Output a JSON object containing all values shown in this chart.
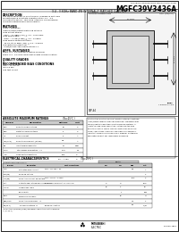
{
  "title": "MGFC39V3436A",
  "company_line": "MITSUBISHI SEMICONDUCTOR TECHNICAL DATA SHEET",
  "subtitle2": "3.4 - 3.6GHz BAND 4W INTERNALLY MATCHED GaAs FET",
  "bg_color": "#ffffff",
  "description_title": "DESCRIPTION",
  "description_text": "The MGFC39V3436A is an internally impedance matched\nMicrostrip/PTFE substrate operates at DC 3.4 - 3.6\nGHz band of device. This fixed internally biased device\ncombines performance and reliability.",
  "features_title": "FEATURES",
  "features_lines": [
    "Class A operation",
    "Internal input/output matching network",
    "High output power:",
    "  Pout = 37 dBm (4W) @ 4.0 - 5.5V-Ohm",
    "High power gain:",
    "  Gain = 11 dB (P1dB) @ 4.0 - 5.0dBm",
    "High power added efficiency:",
    "  35.4% at 37 dBm (4W) @ 4.0 - 5.5GHz",
    "Low distortion (Back off)",
    "  Input/output: see specifications L.L."
  ],
  "apps_title": "APPS. SUSTAINED",
  "apps_lines": [
    "Band: 3.4 - 3.6 GHz base station amplifier",
    "Band: 3.4 - 3.6 GHz linear digital data communication"
  ],
  "quality_title": "QUALITY GRADES",
  "quality_text": "Q",
  "bias_title": "RECOMMENDED BIAS CONDITIONS",
  "bias_lines": [
    "VDS = 10 ±0.1V",
    "IDS 0.8 IDS",
    "See test circuit"
  ],
  "outline_label": "OUTLINE DIMENSIONS",
  "unit_label": "UNIT: (mm/inch)",
  "pkg_label": "QFP-44",
  "abs_title": "ABSOLUTE MAXIMUM RATINGS",
  "abs_subtitle": "(Ta=25°C )",
  "abs_headers": [
    "Symbol",
    "Parameter",
    "Ratings",
    "Unit"
  ],
  "abs_rows": [
    [
      "VDS",
      "Drain to drain voltage",
      "12",
      "V"
    ],
    [
      "VGS",
      "Gate to source voltage",
      "2",
      "V"
    ],
    [
      "ID",
      "Drain current",
      "3",
      "A"
    ],
    [
      "IDS(MAX)",
      "Drain to source mA (PAMP)",
      "0.5",
      "A"
    ],
    [
      "Pin",
      "Input power absolute",
      "24",
      "dBm"
    ],
    [
      "Pdiss",
      "Total power dissipation   *1",
      "27.5",
      "W"
    ],
    [
      "Tch",
      "Channel temperature",
      "150",
      "°C"
    ],
    [
      "Tstg",
      "Storage temperature",
      "55 ~ +150",
      "°C"
    ]
  ],
  "abs_note": "*1 Derate linearly above 25°C",
  "note_text": "Construction: Built in low circuit function internally matched\ninput/output network, both side mounting. Compatible with\ncarrier/substrate land type, direct grounding method. All\ninputs via lead frame connection. Suitable for the high\ndensity mounting. Works. Type of construction for device.\nNOTE: Applications require any redundance or backup of\nimportant signals any redundance or makeup. Suitable for\napplication against any redundance or makeup.",
  "elec_title": "ELECTRICAL CHARACTERISTICS",
  "elec_subtitle": "(Ta=25°C )",
  "elec_headers": [
    "Symbol",
    "Parameter",
    "Test Conditions",
    "Min",
    "Typ",
    "Max",
    "Unit"
  ],
  "elec_rows": [
    [
      "IDSS",
      "Saturated drain current",
      "VDS = 3V, VGS = 0V",
      "",
      "",
      "2.5",
      "A"
    ],
    [
      "VGS(off)",
      "Pinch-off voltage",
      "",
      "",
      "",
      "",
      "V"
    ],
    [
      "VDS(BR)",
      "Drain to source mA off voltage",
      "VDS = 3V, ID = 1 VSGS",
      "",
      "",
      "17.5",
      "V"
    ],
    [
      "Pout",
      "Output power at 1dB gain compression",
      "4.0GHz: 50ohm adj.opt src. & 50ohm",
      "16",
      "18",
      "",
      "dBm"
    ],
    [
      "ΔLp B",
      "Linear power gain",
      "",
      "10",
      "11",
      "",
      "dB"
    ],
    [
      "",
      "Band width",
      "",
      "",
      "1",
      "",
      "GHz"
    ],
    [
      "ηadd",
      "Power add efficiency",
      "",
      "",
      "30",
      "",
      "%"
    ],
    [
      "V(BR)DSO",
      "Drain to 50 Board Bias   *1",
      "",
      "",
      "",
      "1.5",
      "V"
    ],
    [
      "Rth(ch-c)",
      "Thermal resistance  D",
      "Below 10 condition",
      "",
      "",
      "3.0",
      "°C/W"
    ]
  ],
  "elec_note1": "*1 Drain to 50 (zero bias) (Begin): base base 50 percent base station amplifier",
  "elec_note2": "2  (Ta=25°C)",
  "mitsubishi_name": "MITSUBISHI\nELECTRIC",
  "page_note": "File No.1861"
}
